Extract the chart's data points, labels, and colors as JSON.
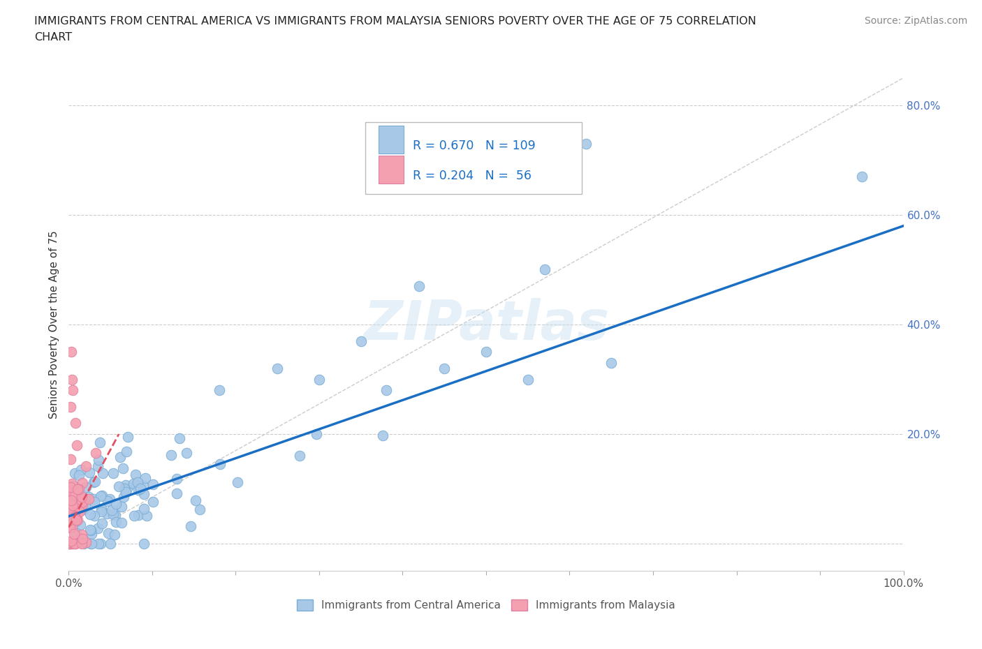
{
  "title_line1": "IMMIGRANTS FROM CENTRAL AMERICA VS IMMIGRANTS FROM MALAYSIA SENIORS POVERTY OVER THE AGE OF 75 CORRELATION",
  "title_line2": "CHART",
  "source_text": "Source: ZipAtlas.com",
  "ylabel": "Seniors Poverty Over the Age of 75",
  "xlim": [
    0,
    100
  ],
  "ylim": [
    -5,
    85
  ],
  "xticks": [
    0,
    10,
    20,
    30,
    40,
    50,
    60,
    70,
    80,
    90,
    100
  ],
  "yticks": [
    0,
    20,
    40,
    60,
    80
  ],
  "xtick_labels": [
    "0.0%",
    "",
    "",
    "",
    "",
    "",
    "",
    "",
    "",
    "",
    "100.0%"
  ],
  "ytick_labels": [
    "",
    "20.0%",
    "40.0%",
    "60.0%",
    "80.0%"
  ],
  "R_central": 0.67,
  "N_central": 109,
  "R_malaysia": 0.204,
  "N_malaysia": 56,
  "color_central": "#a8c8e8",
  "color_central_edge": "#7aadd4",
  "color_malaysia": "#f4a0b0",
  "color_malaysia_edge": "#e080a0",
  "line_color_central": "#1a6fc4",
  "line_color_malaysia": "#e05060",
  "ref_line_color": "#cccccc",
  "watermark": "ZIPatlas",
  "legend_entries": [
    "Immigrants from Central America",
    "Immigrants from Malaysia"
  ],
  "reg_central_x0": 0,
  "reg_central_y0": 5,
  "reg_central_x1": 100,
  "reg_central_y1": 58,
  "reg_malaysia_x0": 0,
  "reg_malaysia_y0": 3,
  "reg_malaysia_x1": 6,
  "reg_malaysia_y1": 20
}
